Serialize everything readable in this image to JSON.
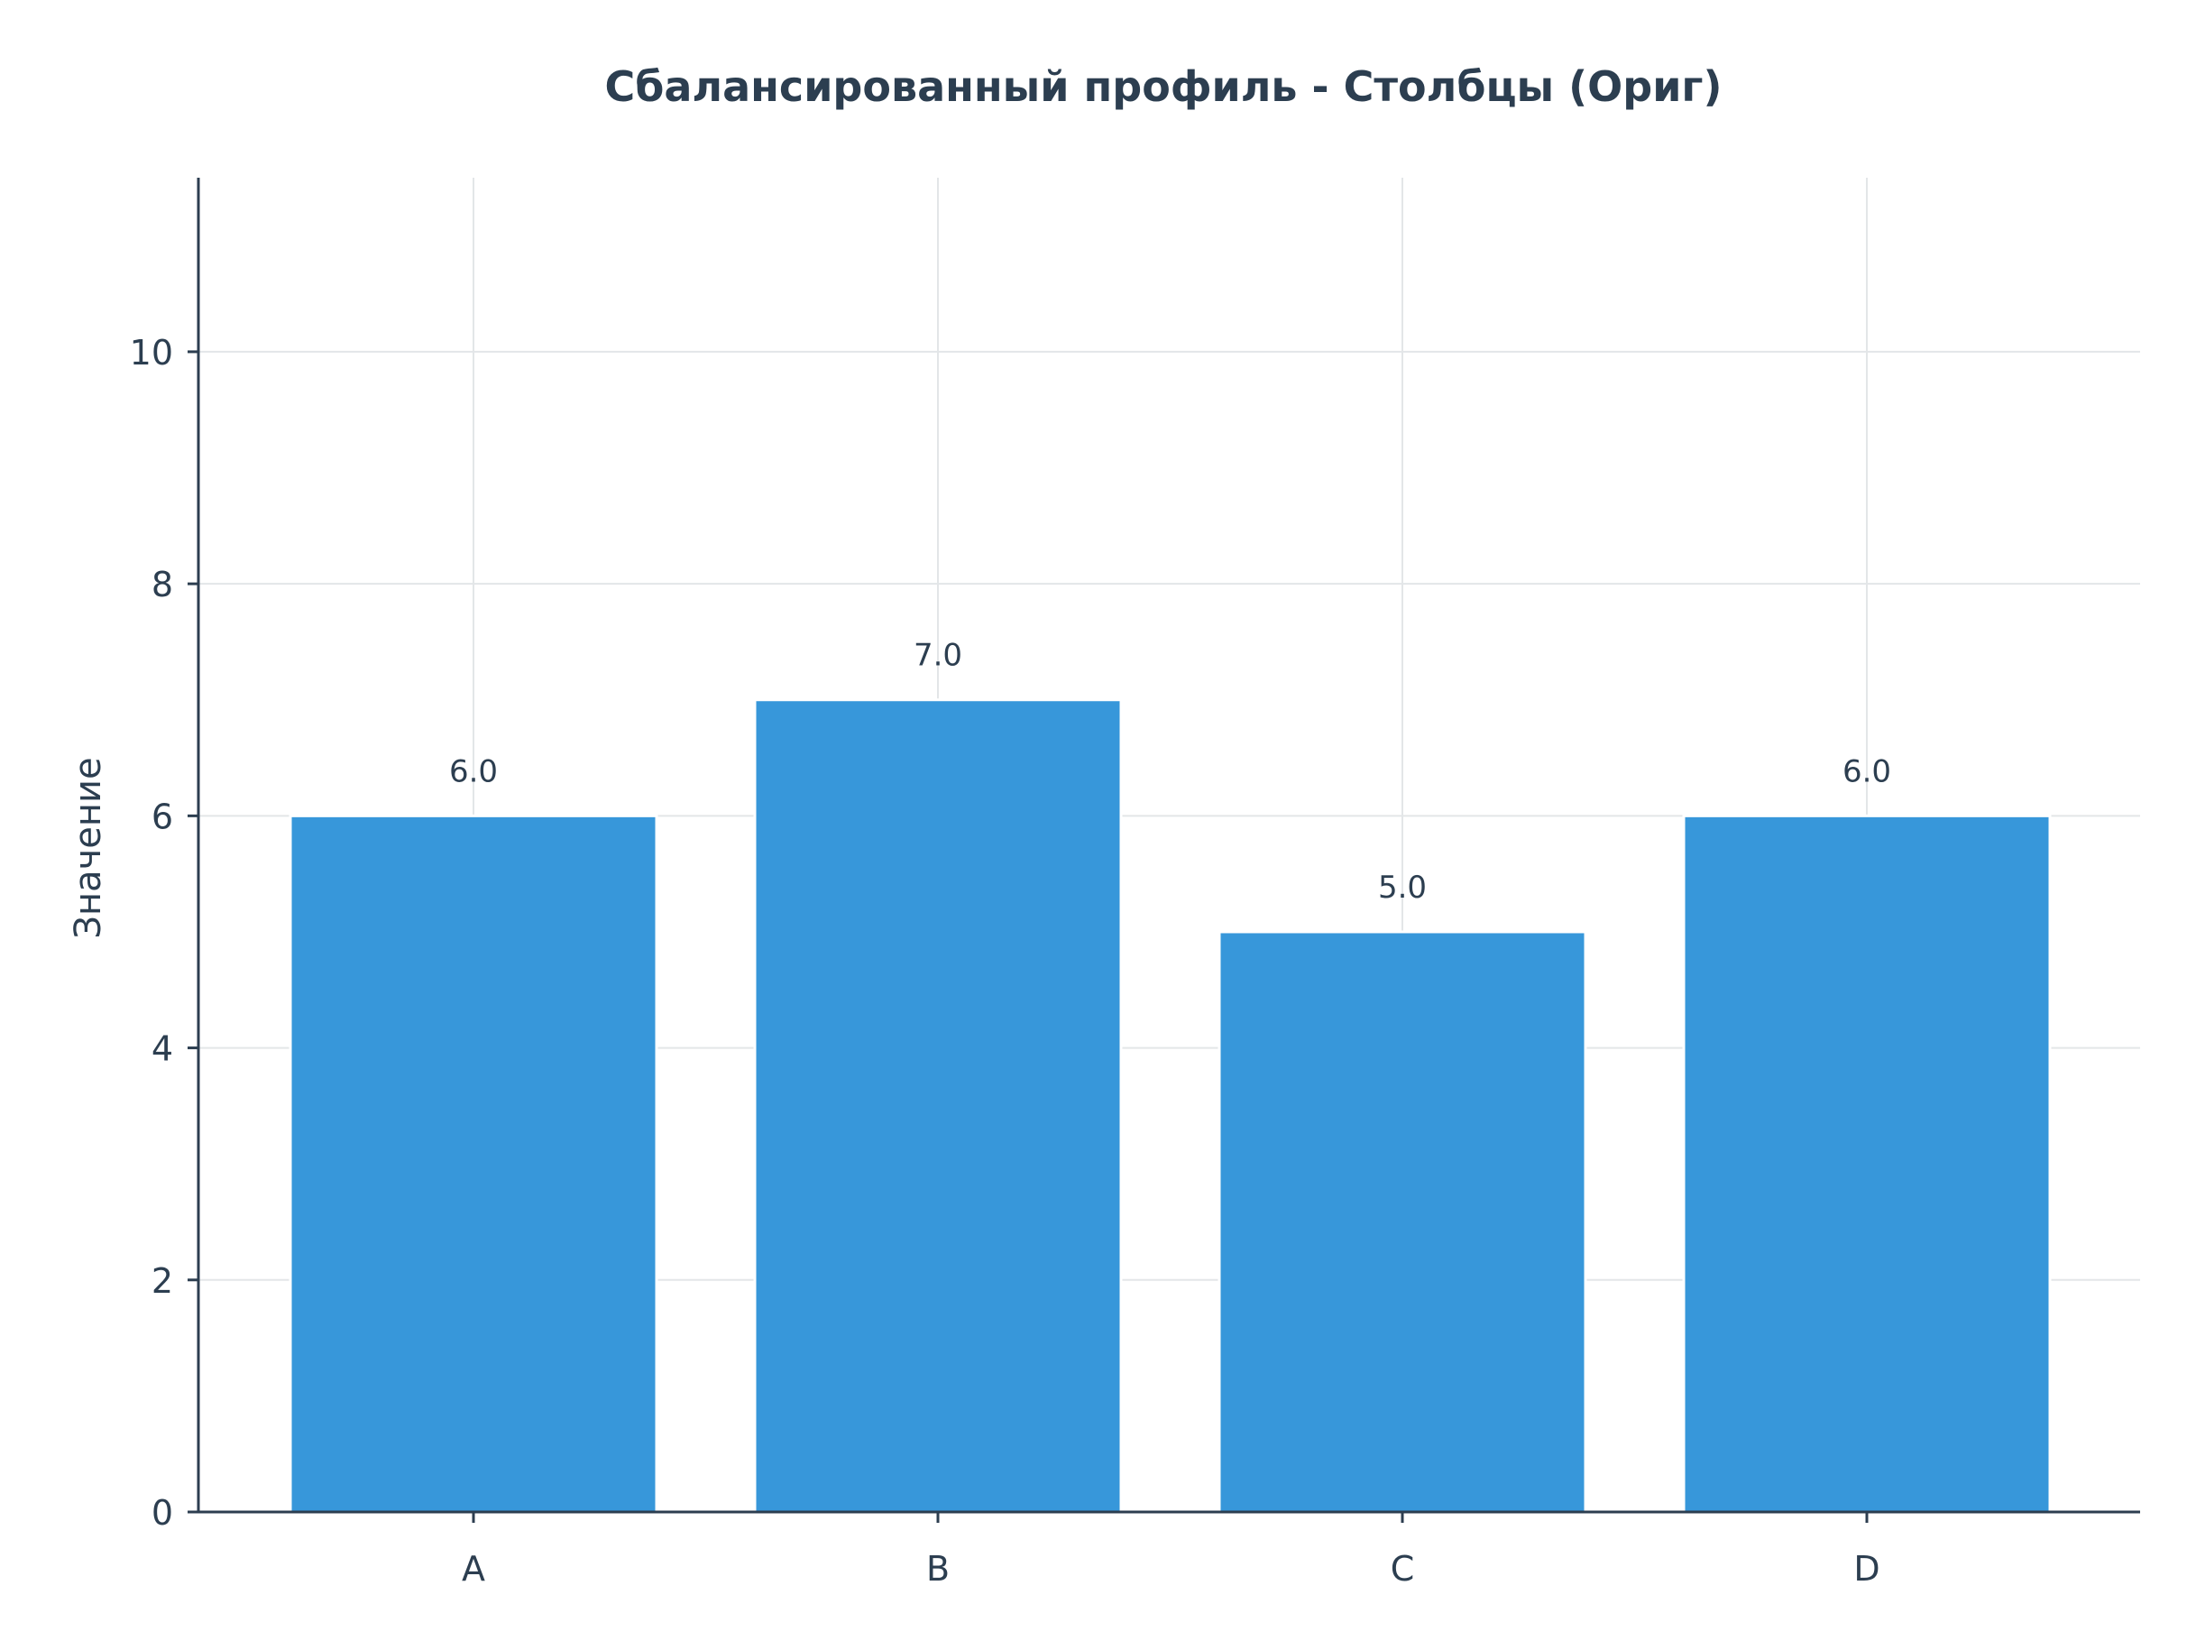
{
  "chart_data": {
    "type": "bar",
    "title": "Сбалансированный профиль - Столбцы (Ориг)",
    "xlabel": "",
    "ylabel": "Значение",
    "categories": [
      "A",
      "B",
      "C",
      "D"
    ],
    "values": [
      6.0,
      7.0,
      5.0,
      6.0
    ],
    "value_labels": [
      "6.0",
      "7.0",
      "5.0",
      "6.0"
    ],
    "ylim": [
      0,
      11.5
    ],
    "yticks": [
      0,
      2,
      4,
      6,
      8,
      10
    ],
    "grid": true,
    "legend": "none",
    "colors": {
      "bar": "#3797da",
      "text": "#2c3e50",
      "grid": "#e3e6e8"
    }
  }
}
